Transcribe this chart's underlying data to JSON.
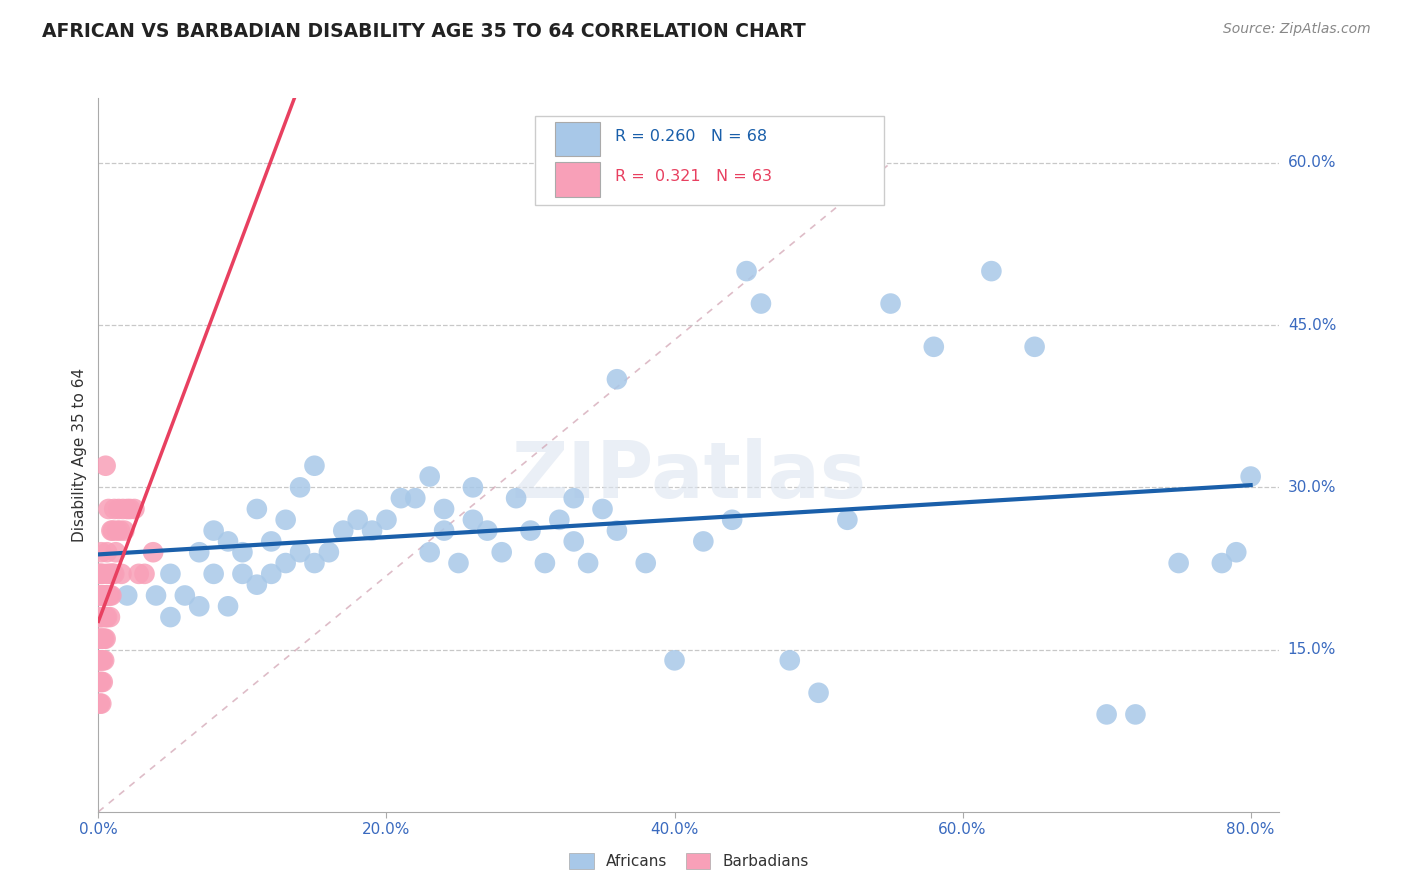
{
  "title": "AFRICAN VS BARBADIAN DISABILITY AGE 35 TO 64 CORRELATION CHART",
  "source": "Source: ZipAtlas.com",
  "ylabel": "Disability Age 35 to 64",
  "xlim": [
    0.0,
    0.82
  ],
  "ylim": [
    0.0,
    0.66
  ],
  "african_color": "#a8c8e8",
  "barbadian_color": "#f8a0b8",
  "african_line_color": "#1a5faa",
  "barbadian_line_color": "#e84060",
  "background_color": "#ffffff",
  "grid_color": "#c8c8c8",
  "legend_r_african": "0.260",
  "legend_n_african": "68",
  "legend_r_barbadian": "0.321",
  "legend_n_barbadian": "63",
  "africans_x": [
    0.02,
    0.04,
    0.05,
    0.05,
    0.06,
    0.07,
    0.07,
    0.08,
    0.08,
    0.09,
    0.09,
    0.1,
    0.1,
    0.11,
    0.11,
    0.12,
    0.12,
    0.13,
    0.13,
    0.14,
    0.14,
    0.15,
    0.15,
    0.16,
    0.17,
    0.18,
    0.19,
    0.2,
    0.21,
    0.22,
    0.23,
    0.23,
    0.24,
    0.24,
    0.25,
    0.26,
    0.26,
    0.27,
    0.28,
    0.29,
    0.3,
    0.31,
    0.32,
    0.33,
    0.33,
    0.34,
    0.35,
    0.36,
    0.36,
    0.38,
    0.4,
    0.42,
    0.44,
    0.45,
    0.46,
    0.48,
    0.5,
    0.52,
    0.55,
    0.58,
    0.62,
    0.65,
    0.7,
    0.72,
    0.75,
    0.78,
    0.79,
    0.8
  ],
  "africans_y": [
    0.2,
    0.2,
    0.18,
    0.22,
    0.2,
    0.19,
    0.24,
    0.22,
    0.26,
    0.19,
    0.25,
    0.22,
    0.24,
    0.21,
    0.28,
    0.22,
    0.25,
    0.23,
    0.27,
    0.24,
    0.3,
    0.23,
    0.32,
    0.24,
    0.26,
    0.27,
    0.26,
    0.27,
    0.29,
    0.29,
    0.31,
    0.24,
    0.28,
    0.26,
    0.23,
    0.27,
    0.3,
    0.26,
    0.24,
    0.29,
    0.26,
    0.23,
    0.27,
    0.25,
    0.29,
    0.23,
    0.28,
    0.4,
    0.26,
    0.23,
    0.14,
    0.25,
    0.27,
    0.5,
    0.47,
    0.14,
    0.11,
    0.27,
    0.47,
    0.43,
    0.5,
    0.43,
    0.09,
    0.09,
    0.23,
    0.23,
    0.24,
    0.31
  ],
  "barbadians_x": [
    0.0,
    0.0,
    0.0,
    0.0,
    0.0,
    0.0,
    0.001,
    0.001,
    0.001,
    0.001,
    0.001,
    0.001,
    0.001,
    0.002,
    0.002,
    0.002,
    0.002,
    0.002,
    0.002,
    0.002,
    0.002,
    0.003,
    0.003,
    0.003,
    0.003,
    0.003,
    0.003,
    0.004,
    0.004,
    0.004,
    0.005,
    0.005,
    0.005,
    0.005,
    0.006,
    0.006,
    0.006,
    0.006,
    0.007,
    0.007,
    0.008,
    0.008,
    0.008,
    0.009,
    0.009,
    0.009,
    0.01,
    0.01,
    0.011,
    0.011,
    0.012,
    0.013,
    0.014,
    0.015,
    0.016,
    0.017,
    0.018,
    0.02,
    0.022,
    0.025,
    0.028,
    0.032,
    0.038
  ],
  "barbadians_y": [
    0.12,
    0.14,
    0.16,
    0.18,
    0.2,
    0.22,
    0.1,
    0.12,
    0.14,
    0.16,
    0.18,
    0.2,
    0.22,
    0.1,
    0.12,
    0.14,
    0.16,
    0.18,
    0.2,
    0.22,
    0.24,
    0.12,
    0.14,
    0.16,
    0.18,
    0.2,
    0.22,
    0.14,
    0.16,
    0.2,
    0.16,
    0.18,
    0.2,
    0.32,
    0.18,
    0.2,
    0.22,
    0.24,
    0.2,
    0.28,
    0.18,
    0.2,
    0.22,
    0.2,
    0.22,
    0.26,
    0.22,
    0.26,
    0.22,
    0.28,
    0.24,
    0.26,
    0.28,
    0.26,
    0.22,
    0.28,
    0.26,
    0.28,
    0.28,
    0.28,
    0.22,
    0.22,
    0.24
  ]
}
